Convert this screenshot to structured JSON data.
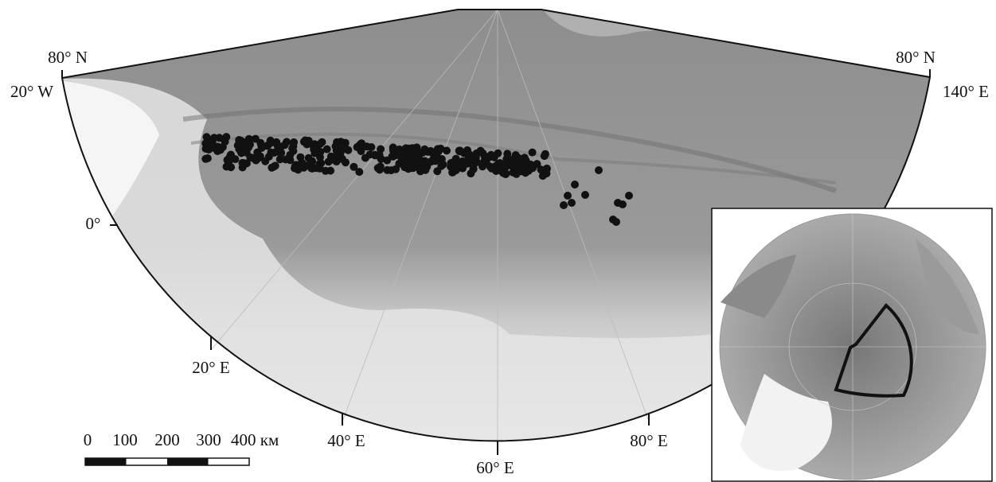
{
  "map": {
    "graticule_labels": [
      "80° N",
      "80° N",
      "20° W",
      "140° E",
      "0°",
      "20° E",
      "40° E",
      "60° E",
      "80° E"
    ],
    "scale_bar": [
      "0",
      "100",
      "200",
      "300",
      "400 км"
    ]
  }
}
